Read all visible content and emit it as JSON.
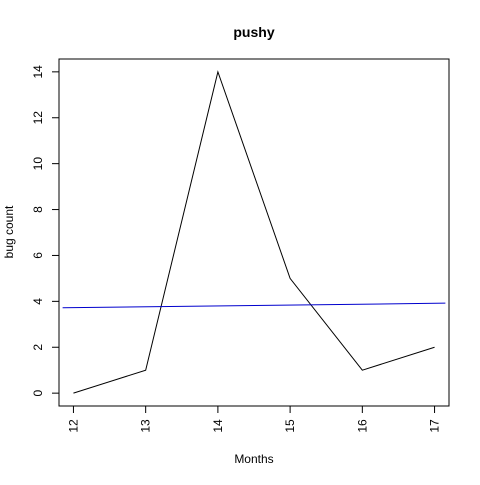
{
  "chart_data": {
    "type": "line",
    "title": "pushy",
    "xlabel": "Months",
    "ylabel": "bug count",
    "x": [
      12,
      13,
      14,
      15,
      16,
      17
    ],
    "series": [
      {
        "values": [
          0,
          1,
          14,
          5,
          1,
          2
        ],
        "color": "#000000"
      }
    ],
    "trend_line": {
      "x": [
        11.85,
        17.15
      ],
      "y": [
        3.72,
        3.92
      ],
      "color": "#0000cd"
    },
    "xlim": [
      11.8,
      17.2
    ],
    "ylim": [
      -0.56,
      14.56
    ],
    "x_ticks": [
      12,
      13,
      14,
      15,
      16,
      17
    ],
    "y_ticks": [
      0,
      2,
      4,
      6,
      8,
      10,
      12,
      14
    ],
    "grid": false,
    "legend": "none"
  }
}
